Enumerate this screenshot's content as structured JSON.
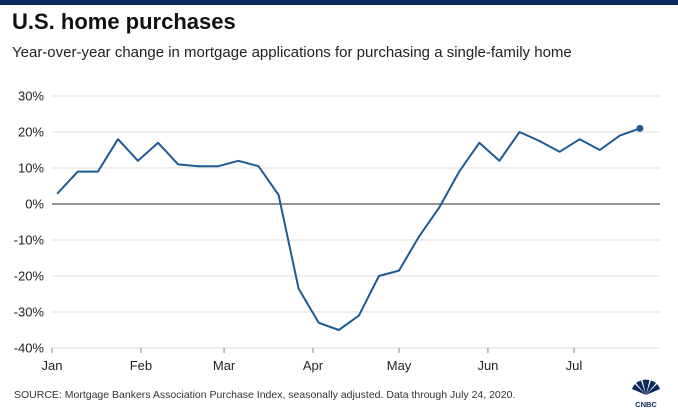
{
  "header": {
    "title": "U.S. home purchases",
    "subtitle": "Year-over-year change in mortgage applications for purchasing a single-family home"
  },
  "footer": {
    "source": "SOURCE: Mortgage Bankers Association Purchase Index, seasonally adjusted. Data through July 24, 2020.",
    "logo_text": "CNBC"
  },
  "colors": {
    "line": "#1f5a94",
    "grid": "#dcdcdc",
    "zero_line": "#555555",
    "text": "#222222",
    "brand": "#0b2a5a"
  },
  "chart_data": {
    "type": "line",
    "title": "U.S. home purchases",
    "subtitle": "Year-over-year change in mortgage applications for purchasing a single-family home",
    "ylim": [
      -40,
      30
    ],
    "yticks": [
      30,
      20,
      10,
      0,
      -10,
      -20,
      -30,
      -40
    ],
    "ytick_labels": [
      "30%",
      "20%",
      "10%",
      "0%",
      "-10%",
      "-20%",
      "-30%",
      "-40%"
    ],
    "xlim": [
      "2020-01-01",
      "2020-07-31"
    ],
    "xticks": [
      {
        "date": "2020-01-01",
        "label": "Jan"
      },
      {
        "date": "2020-02-01",
        "label": "Feb"
      },
      {
        "date": "2020-03-01",
        "label": "Mar"
      },
      {
        "date": "2020-04-01",
        "label": "Apr"
      },
      {
        "date": "2020-05-01",
        "label": "May"
      },
      {
        "date": "2020-06-01",
        "label": "Jun"
      },
      {
        "date": "2020-07-01",
        "label": "Jul"
      }
    ],
    "grid": true,
    "series": [
      {
        "x": [
          "2020-01-03",
          "2020-01-10",
          "2020-01-17",
          "2020-01-24",
          "2020-01-31",
          "2020-02-07",
          "2020-02-14",
          "2020-02-21",
          "2020-02-28",
          "2020-03-06",
          "2020-03-13",
          "2020-03-20",
          "2020-03-27",
          "2020-04-03",
          "2020-04-10",
          "2020-04-17",
          "2020-04-24",
          "2020-05-01",
          "2020-05-08",
          "2020-05-15",
          "2020-05-22",
          "2020-05-29",
          "2020-06-05",
          "2020-06-12",
          "2020-06-19",
          "2020-06-26",
          "2020-07-03",
          "2020-07-10",
          "2020-07-17",
          "2020-07-24"
        ],
        "y": [
          3,
          9,
          9,
          18,
          12,
          17,
          11,
          10.5,
          10.5,
          12,
          10.5,
          2.5,
          -23.5,
          -33,
          -35,
          -31,
          -20,
          -18.5,
          -9,
          -1,
          9,
          17,
          12,
          20,
          17.5,
          14.5,
          18,
          15,
          19,
          21
        ]
      }
    ]
  }
}
